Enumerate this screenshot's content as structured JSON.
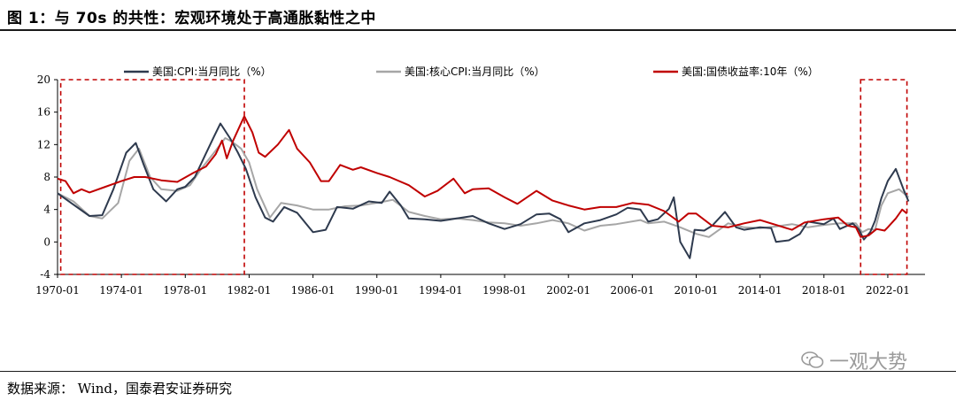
{
  "header": {
    "title": "图 1：与 70s 的共性：宏观环境处于高通胀黏性之中"
  },
  "footer": {
    "source": "数据来源： Wind，国泰君安证券研究",
    "watermark": "一观大势",
    "watermark_icon": "wechat-icon"
  },
  "chart_data": {
    "type": "line",
    "title": "",
    "xlabel": "",
    "ylabel": "",
    "ylim": [
      -4,
      20
    ],
    "yticks": [
      "20",
      "16",
      "12",
      "8",
      "4",
      "0",
      "-4"
    ],
    "xlim": [
      1970.0,
      2023.5
    ],
    "xticks": [
      "1970-01",
      "1974-01",
      "1978-01",
      "1982-01",
      "1986-01",
      "1990-01",
      "1994-01",
      "1998-01",
      "2002-01",
      "2006-01",
      "2010-01",
      "2014-01",
      "2018-01",
      "2022-01"
    ],
    "grid": false,
    "legend_placement": "top",
    "highlight_ranges": [
      [
        1970.2,
        1981.7
      ],
      [
        2020.3,
        2023.2
      ]
    ],
    "highlight_color": "#c00000",
    "series": [
      {
        "name": "美国:CPI:当月同比（%）",
        "color": "#2e3a4e",
        "x": [
          1970.0,
          1971.0,
          1972.0,
          1972.8,
          1973.5,
          1974.3,
          1974.9,
          1975.4,
          1976.0,
          1976.8,
          1977.5,
          1978.0,
          1978.6,
          1979.2,
          1979.8,
          1980.2,
          1980.8,
          1981.3,
          1981.8,
          1982.4,
          1983.0,
          1983.5,
          1984.2,
          1985.0,
          1986.0,
          1986.8,
          1987.5,
          1988.5,
          1989.5,
          1990.3,
          1990.8,
          1991.5,
          1992.0,
          1993.0,
          1994.0,
          1995.0,
          1996.0,
          1997.0,
          1998.0,
          1999.0,
          2000.0,
          2000.8,
          2001.5,
          2002.0,
          2003.0,
          2004.0,
          2005.0,
          2005.7,
          2006.5,
          2007.0,
          2007.6,
          2008.3,
          2008.6,
          2009.0,
          2009.6,
          2009.9,
          2010.5,
          2011.0,
          2011.8,
          2012.5,
          2013.0,
          2014.0,
          2014.7,
          2015.0,
          2015.8,
          2016.5,
          2017.0,
          2018.0,
          2018.6,
          2019.0,
          2019.8,
          2020.2,
          2020.5,
          2020.9,
          2021.2,
          2021.6,
          2022.0,
          2022.5,
          2023.0,
          2023.3
        ],
        "y": [
          6.0,
          4.6,
          3.2,
          3.3,
          6.5,
          11.0,
          12.2,
          9.5,
          6.5,
          5.0,
          6.5,
          6.8,
          8.0,
          10.5,
          13.0,
          14.6,
          12.8,
          11.0,
          9.0,
          5.5,
          3.0,
          2.5,
          4.3,
          3.6,
          1.2,
          1.5,
          4.3,
          4.1,
          5.0,
          4.8,
          6.2,
          4.5,
          2.9,
          2.8,
          2.6,
          2.9,
          3.2,
          2.3,
          1.6,
          2.2,
          3.4,
          3.5,
          2.8,
          1.2,
          2.3,
          2.7,
          3.4,
          4.2,
          4.0,
          2.5,
          2.8,
          4.1,
          5.5,
          0.0,
          -2.0,
          1.5,
          1.4,
          2.0,
          3.7,
          1.8,
          1.5,
          1.8,
          1.7,
          0.0,
          0.2,
          1.0,
          2.5,
          2.2,
          2.9,
          1.6,
          2.3,
          1.5,
          0.3,
          1.2,
          2.6,
          5.4,
          7.5,
          9.0,
          6.4,
          5.0
        ]
      },
      {
        "name": "美国:核心CPI:当月同比（%）",
        "color": "#a6a6a6",
        "x": [
          1970.0,
          1971.0,
          1972.0,
          1972.8,
          1973.8,
          1974.5,
          1975.1,
          1975.8,
          1976.5,
          1977.5,
          1978.3,
          1979.0,
          1979.8,
          1980.5,
          1980.9,
          1981.5,
          1982.0,
          1982.5,
          1983.3,
          1984.0,
          1985.0,
          1986.0,
          1987.0,
          1988.0,
          1989.0,
          1990.5,
          1991.0,
          1992.0,
          1993.0,
          1994.0,
          1995.0,
          1996.0,
          1997.0,
          1998.0,
          1999.0,
          2000.0,
          2001.0,
          2002.0,
          2003.0,
          2004.0,
          2005.0,
          2006.5,
          2007.0,
          2008.0,
          2009.0,
          2010.0,
          2010.8,
          2012.0,
          2013.0,
          2014.0,
          2015.0,
          2016.0,
          2017.0,
          2018.0,
          2019.0,
          2020.0,
          2020.4,
          2020.8,
          2021.2,
          2021.6,
          2022.0,
          2022.7,
          2023.0,
          2023.3
        ],
        "y": [
          6.0,
          5.0,
          3.2,
          2.9,
          4.8,
          10.0,
          11.5,
          8.0,
          6.5,
          6.3,
          7.0,
          9.0,
          11.0,
          12.8,
          12.4,
          11.5,
          9.8,
          6.5,
          3.0,
          4.8,
          4.5,
          4.0,
          4.0,
          4.4,
          4.5,
          5.0,
          5.2,
          3.7,
          3.2,
          2.8,
          2.9,
          2.7,
          2.4,
          2.3,
          2.0,
          2.3,
          2.7,
          2.3,
          1.4,
          2.0,
          2.2,
          2.7,
          2.3,
          2.5,
          1.8,
          1.0,
          0.6,
          2.3,
          1.8,
          1.7,
          1.9,
          2.2,
          1.8,
          2.1,
          2.3,
          2.3,
          1.2,
          1.6,
          1.5,
          4.5,
          6.0,
          6.5,
          6.0,
          5.5
        ]
      },
      {
        "name": "美国:国债收益率:10年（%）",
        "color": "#c00000",
        "x": [
          1970.0,
          1970.5,
          1971.0,
          1971.5,
          1972.0,
          1973.0,
          1974.0,
          1974.8,
          1975.5,
          1976.5,
          1977.5,
          1978.5,
          1979.3,
          1979.9,
          1980.3,
          1980.6,
          1981.0,
          1981.7,
          1982.2,
          1982.6,
          1983.0,
          1983.8,
          1984.5,
          1985.0,
          1985.8,
          1986.5,
          1987.0,
          1987.7,
          1988.5,
          1989.0,
          1990.0,
          1990.8,
          1992.0,
          1993.0,
          1993.8,
          1994.8,
          1995.5,
          1996.0,
          1997.0,
          1998.0,
          1998.8,
          2000.0,
          2001.0,
          2002.0,
          2003.0,
          2004.0,
          2005.0,
          2006.0,
          2007.0,
          2008.0,
          2008.9,
          2009.5,
          2010.0,
          2011.0,
          2012.0,
          2013.0,
          2014.0,
          2015.0,
          2016.0,
          2016.8,
          2018.0,
          2018.9,
          2019.5,
          2020.0,
          2020.3,
          2020.8,
          2021.3,
          2021.8,
          2022.0,
          2022.5,
          2022.9,
          2023.2
        ],
        "y": [
          7.8,
          7.5,
          6.0,
          6.5,
          6.1,
          6.8,
          7.5,
          8.0,
          8.0,
          7.6,
          7.4,
          8.5,
          9.3,
          10.8,
          12.5,
          10.3,
          12.5,
          15.5,
          13.5,
          11.0,
          10.5,
          12.0,
          13.8,
          11.5,
          9.8,
          7.5,
          7.5,
          9.5,
          8.9,
          9.2,
          8.5,
          8.0,
          7.0,
          5.6,
          6.3,
          7.8,
          6.0,
          6.5,
          6.6,
          5.5,
          4.7,
          6.3,
          5.1,
          4.5,
          4.0,
          4.3,
          4.3,
          4.8,
          4.6,
          3.8,
          2.5,
          3.5,
          3.5,
          2.0,
          1.8,
          2.3,
          2.7,
          2.1,
          1.5,
          2.4,
          2.8,
          3.0,
          2.0,
          1.8,
          0.6,
          0.8,
          1.6,
          1.4,
          1.8,
          2.9,
          4.0,
          3.5
        ]
      }
    ]
  }
}
